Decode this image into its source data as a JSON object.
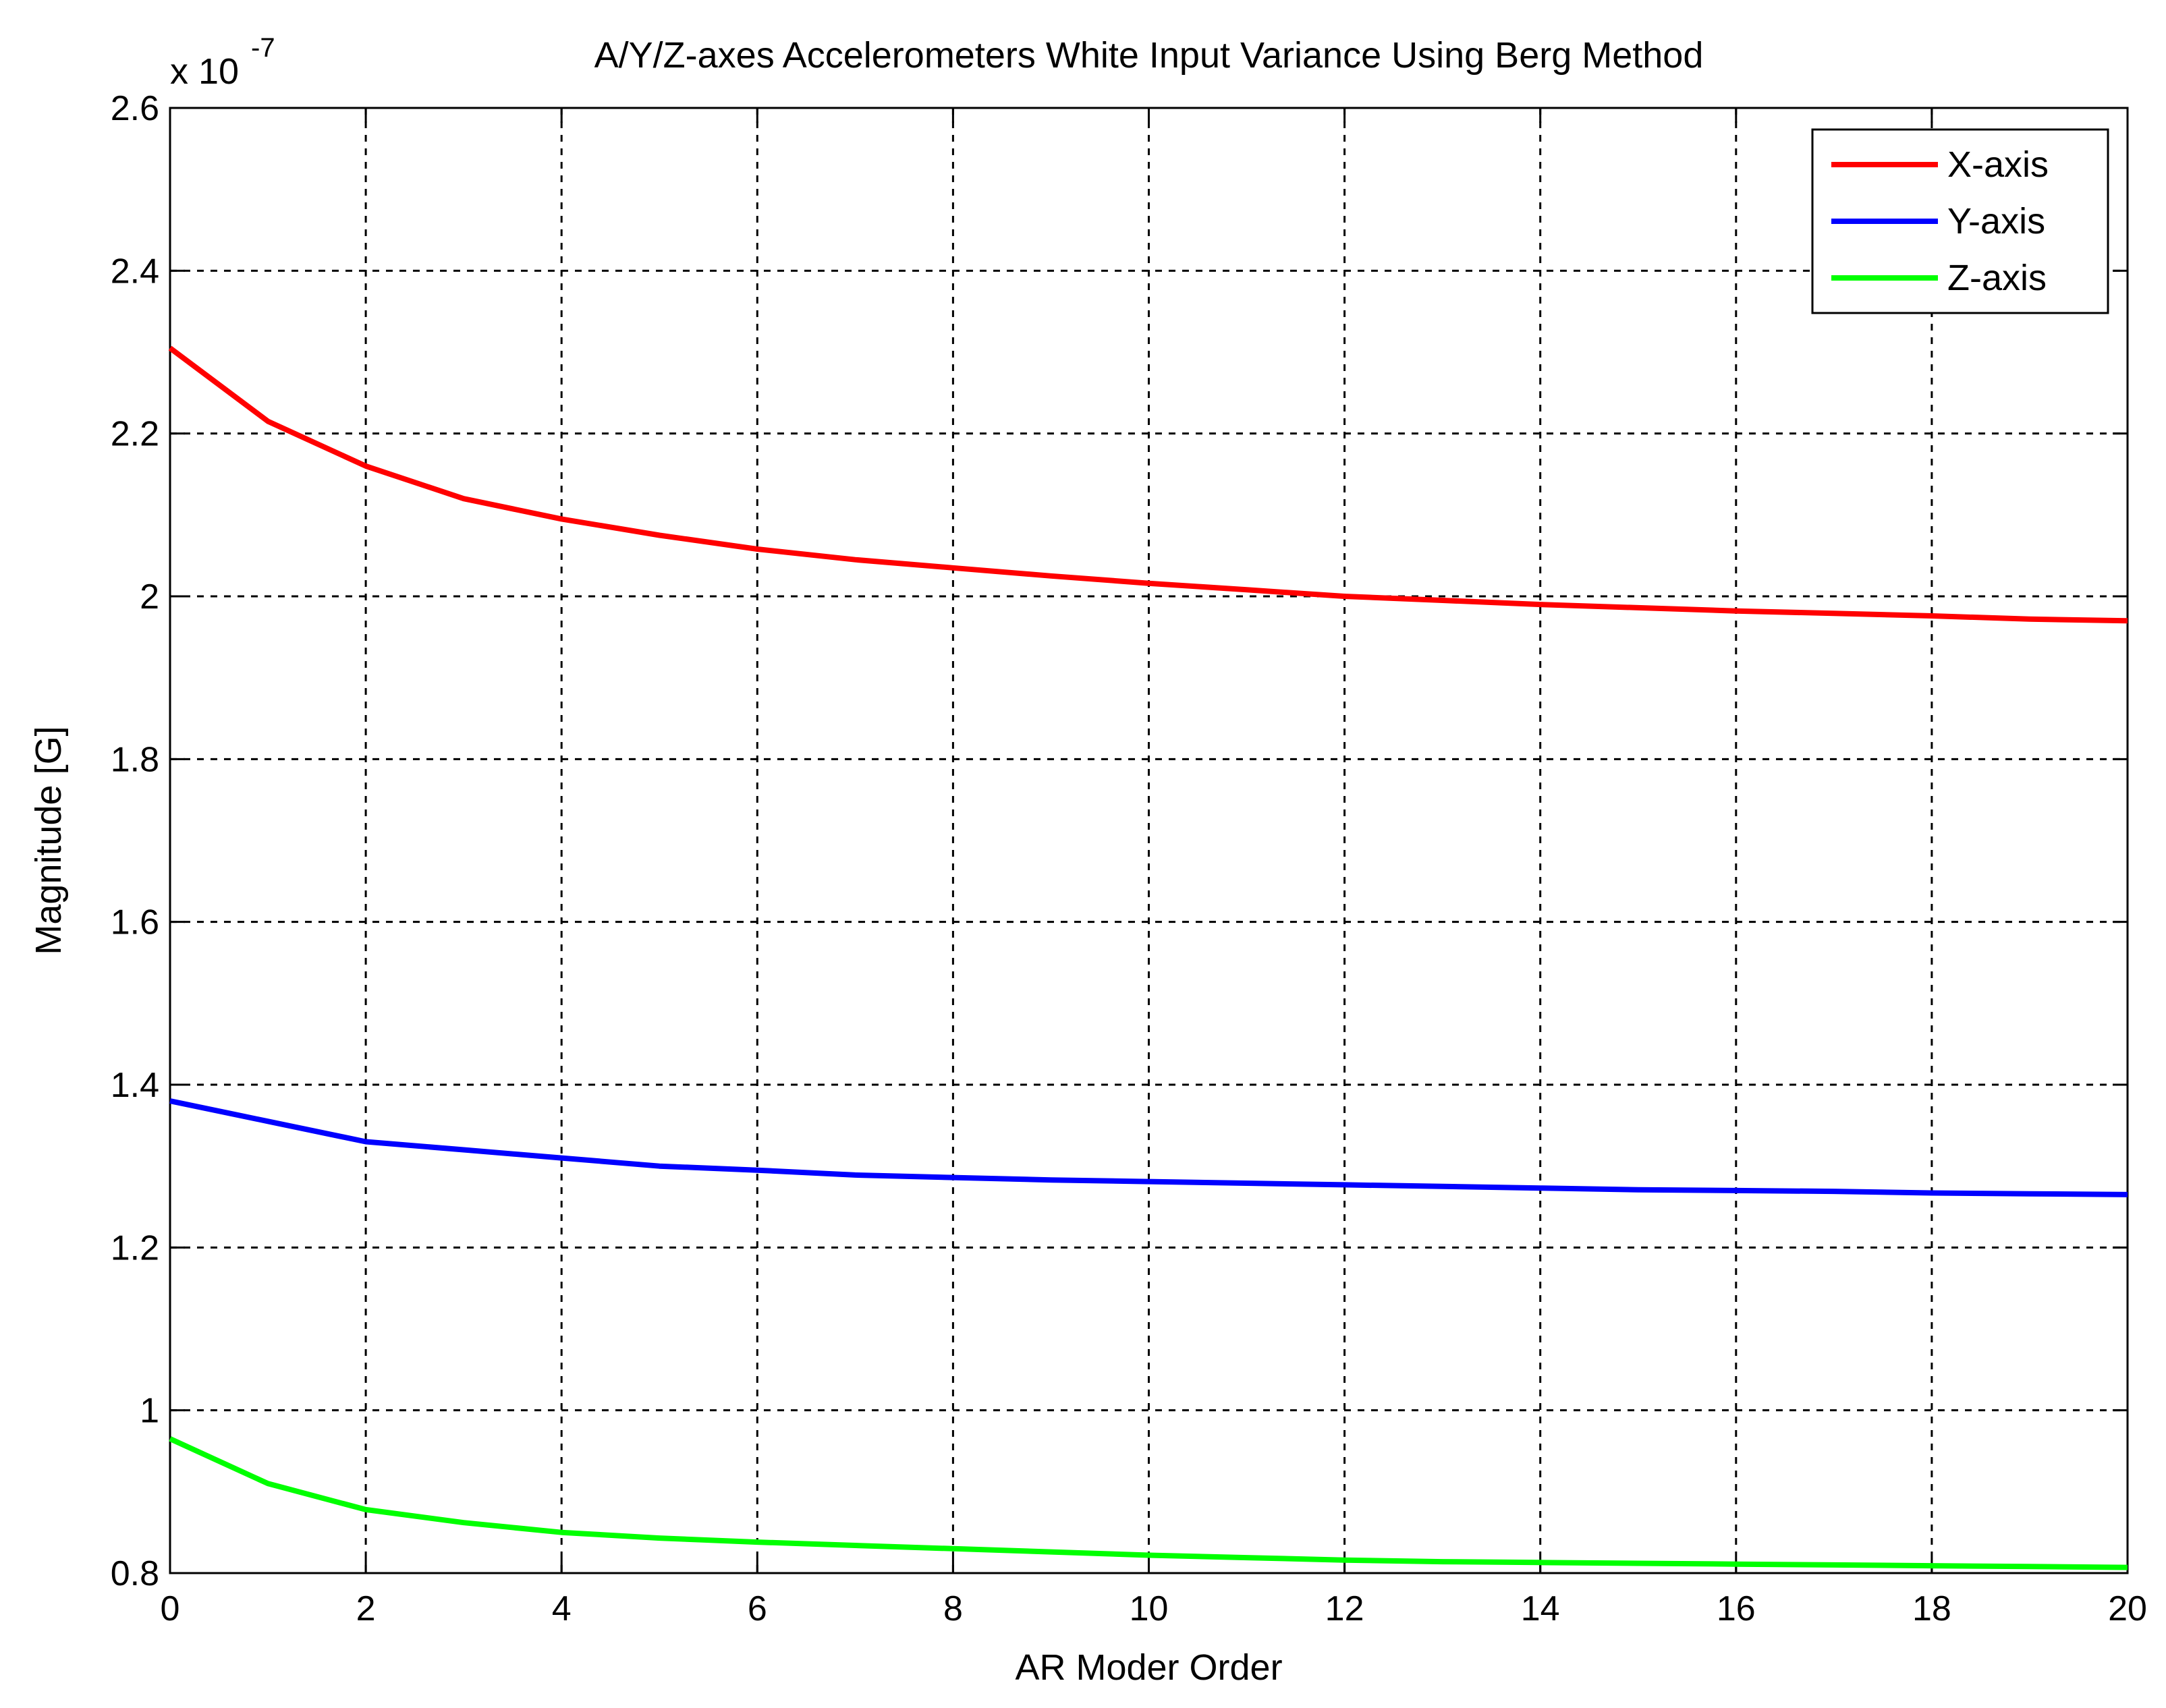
{
  "chart_data": {
    "type": "line",
    "title": "A/Y/Z-axes Accelerometers White Input Variance Using Berg Method",
    "xlabel": "AR Moder Order",
    "ylabel": "Magnitude [G]",
    "exponent_label": "x 10",
    "exponent_power": "-7",
    "xlim": [
      0,
      20
    ],
    "ylim": [
      0.8,
      2.6
    ],
    "xticks": [
      0,
      2,
      4,
      6,
      8,
      10,
      12,
      14,
      16,
      18,
      20
    ],
    "yticks": [
      0.8,
      1,
      1.2,
      1.4,
      1.6,
      1.8,
      2,
      2.2,
      2.4,
      2.6
    ],
    "xtick_labels": [
      "0",
      "2",
      "4",
      "6",
      "8",
      "10",
      "12",
      "14",
      "16",
      "18",
      "20"
    ],
    "ytick_labels": [
      "0.8",
      "1",
      "1.2",
      "1.4",
      "1.6",
      "1.8",
      "2",
      "2.2",
      "2.4",
      "2.6"
    ],
    "grid": true,
    "legend_position": "top-right",
    "x": [
      0,
      1,
      2,
      3,
      4,
      5,
      6,
      7,
      8,
      9,
      10,
      11,
      12,
      13,
      14,
      15,
      16,
      17,
      18,
      19,
      20
    ],
    "series": [
      {
        "name": "X-axis",
        "color": "#ff0000",
        "values": [
          2.305,
          2.215,
          2.16,
          2.12,
          2.095,
          2.075,
          2.058,
          2.045,
          2.035,
          2.025,
          2.016,
          2.008,
          2.0,
          1.995,
          1.99,
          1.986,
          1.982,
          1.979,
          1.976,
          1.972,
          1.97
        ]
      },
      {
        "name": "Y-axis",
        "color": "#0000ff",
        "values": [
          1.38,
          1.355,
          1.33,
          1.32,
          1.31,
          1.3,
          1.295,
          1.289,
          1.286,
          1.283,
          1.281,
          1.279,
          1.277,
          1.275,
          1.273,
          1.271,
          1.27,
          1.269,
          1.267,
          1.266,
          1.265
        ]
      },
      {
        "name": "Z-axis",
        "color": "#00ff00",
        "values": [
          0.965,
          0.91,
          0.878,
          0.862,
          0.85,
          0.843,
          0.838,
          0.834,
          0.83,
          0.826,
          0.822,
          0.819,
          0.816,
          0.814,
          0.813,
          0.812,
          0.811,
          0.81,
          0.809,
          0.808,
          0.807
        ]
      }
    ]
  }
}
